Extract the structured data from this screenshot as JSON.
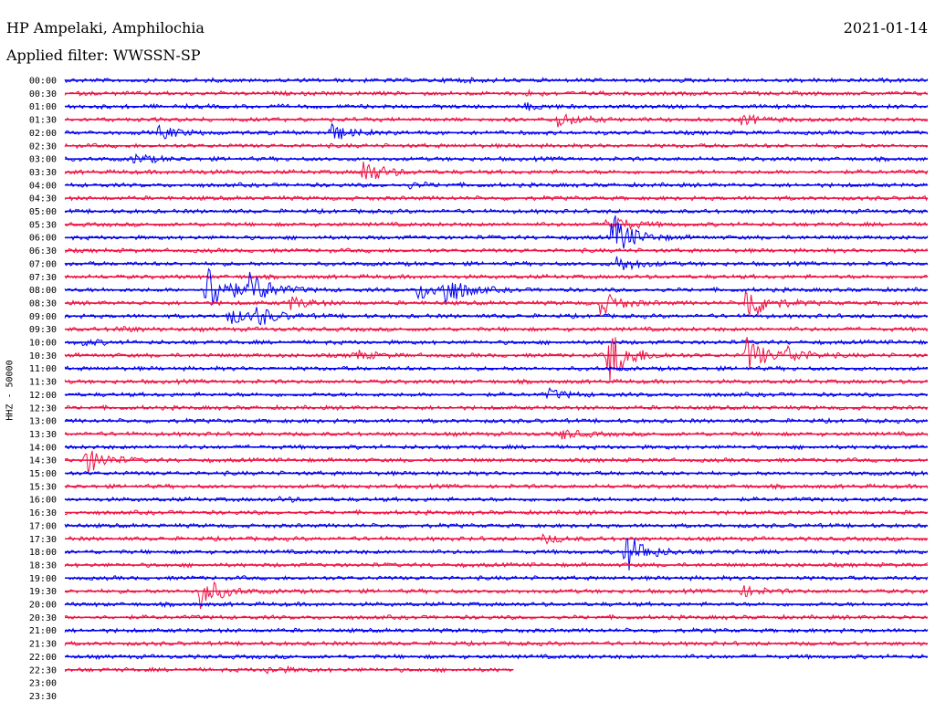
{
  "header": {
    "station": "HP Ampelaki, Amphilochia",
    "date": "2021-01-14",
    "filter_prefix": "Applied filter:",
    "filter_name": "WWSSN-SP"
  },
  "colors": {
    "trace_even": "#0000ee",
    "trace_odd": "#ee1144",
    "background": "#ffffff",
    "text": "#000000"
  },
  "chart_data": {
    "type": "line",
    "title": "HP Ampelaki, Amphilochia",
    "subtitle": "Applied filter: WWSSN-SP",
    "date": "2021-01-14",
    "ylabel": "HHZ - 50000",
    "xlabel": "",
    "row_labels": [
      "00:00",
      "00:30",
      "01:00",
      "01:30",
      "02:00",
      "02:30",
      "03:00",
      "03:30",
      "04:00",
      "04:30",
      "05:00",
      "05:30",
      "06:00",
      "06:30",
      "07:00",
      "07:30",
      "08:00",
      "08:30",
      "09:00",
      "09:30",
      "10:00",
      "10:30",
      "11:00",
      "11:30",
      "12:00",
      "12:30",
      "13:00",
      "13:30",
      "14:00",
      "14:30",
      "15:00",
      "15:30",
      "16:00",
      "16:30",
      "17:00",
      "17:30",
      "18:00",
      "18:30",
      "19:00",
      "19:30",
      "20:00",
      "20:30",
      "21:00",
      "21:30",
      "22:00",
      "22:30",
      "23:00",
      "23:30"
    ],
    "row_minutes": 30,
    "last_row_with_data": "22:30",
    "last_row_end_fraction": 0.52,
    "events": [
      {
        "row": 0,
        "t": 0.445,
        "amp": 0.2
      },
      {
        "row": 1,
        "t": 0.535,
        "amp": 0.2
      },
      {
        "row": 2,
        "t": 0.535,
        "amp": 0.35
      },
      {
        "row": 3,
        "t": 0.57,
        "amp": 1.0
      },
      {
        "row": 3,
        "t": 0.785,
        "amp": 0.6
      },
      {
        "row": 4,
        "t": 0.11,
        "amp": 0.8
      },
      {
        "row": 4,
        "t": 0.305,
        "amp": 1.2
      },
      {
        "row": 6,
        "t": 0.08,
        "amp": 0.6
      },
      {
        "row": 7,
        "t": 0.14,
        "amp": 0.2
      },
      {
        "row": 7,
        "t": 0.345,
        "amp": 1.6
      },
      {
        "row": 8,
        "t": 0.4,
        "amp": 0.3
      },
      {
        "row": 11,
        "t": 0.63,
        "amp": 1.2
      },
      {
        "row": 12,
        "t": 0.635,
        "amp": 2.8
      },
      {
        "row": 14,
        "t": 0.64,
        "amp": 1.0
      },
      {
        "row": 16,
        "t": 0.165,
        "amp": 3.5
      },
      {
        "row": 16,
        "t": 0.215,
        "amp": 2.0
      },
      {
        "row": 16,
        "t": 0.41,
        "amp": 1.2
      },
      {
        "row": 16,
        "t": 0.44,
        "amp": 1.8
      },
      {
        "row": 17,
        "t": 0.26,
        "amp": 0.8
      },
      {
        "row": 17,
        "t": 0.62,
        "amp": 1.5
      },
      {
        "row": 17,
        "t": 0.79,
        "amp": 2.5
      },
      {
        "row": 18,
        "t": 0.19,
        "amp": 1.0
      },
      {
        "row": 18,
        "t": 0.22,
        "amp": 1.2
      },
      {
        "row": 19,
        "t": 0.06,
        "amp": 0.3
      },
      {
        "row": 20,
        "t": 0.02,
        "amp": 0.3
      },
      {
        "row": 21,
        "t": 0.335,
        "amp": 0.6
      },
      {
        "row": 21,
        "t": 0.63,
        "amp": 3.5
      },
      {
        "row": 21,
        "t": 0.79,
        "amp": 2.2
      },
      {
        "row": 21,
        "t": 0.835,
        "amp": 1.0
      },
      {
        "row": 24,
        "t": 0.56,
        "amp": 0.6
      },
      {
        "row": 27,
        "t": 0.575,
        "amp": 0.6
      },
      {
        "row": 29,
        "t": 0.025,
        "amp": 1.6
      },
      {
        "row": 32,
        "t": 0.25,
        "amp": 0.2
      },
      {
        "row": 35,
        "t": 0.555,
        "amp": 0.5
      },
      {
        "row": 36,
        "t": 0.65,
        "amp": 2.5
      },
      {
        "row": 39,
        "t": 0.155,
        "amp": 2.2
      },
      {
        "row": 39,
        "t": 0.785,
        "amp": 0.6
      },
      {
        "row": 45,
        "t": 0.235,
        "amp": 0.4
      }
    ]
  }
}
